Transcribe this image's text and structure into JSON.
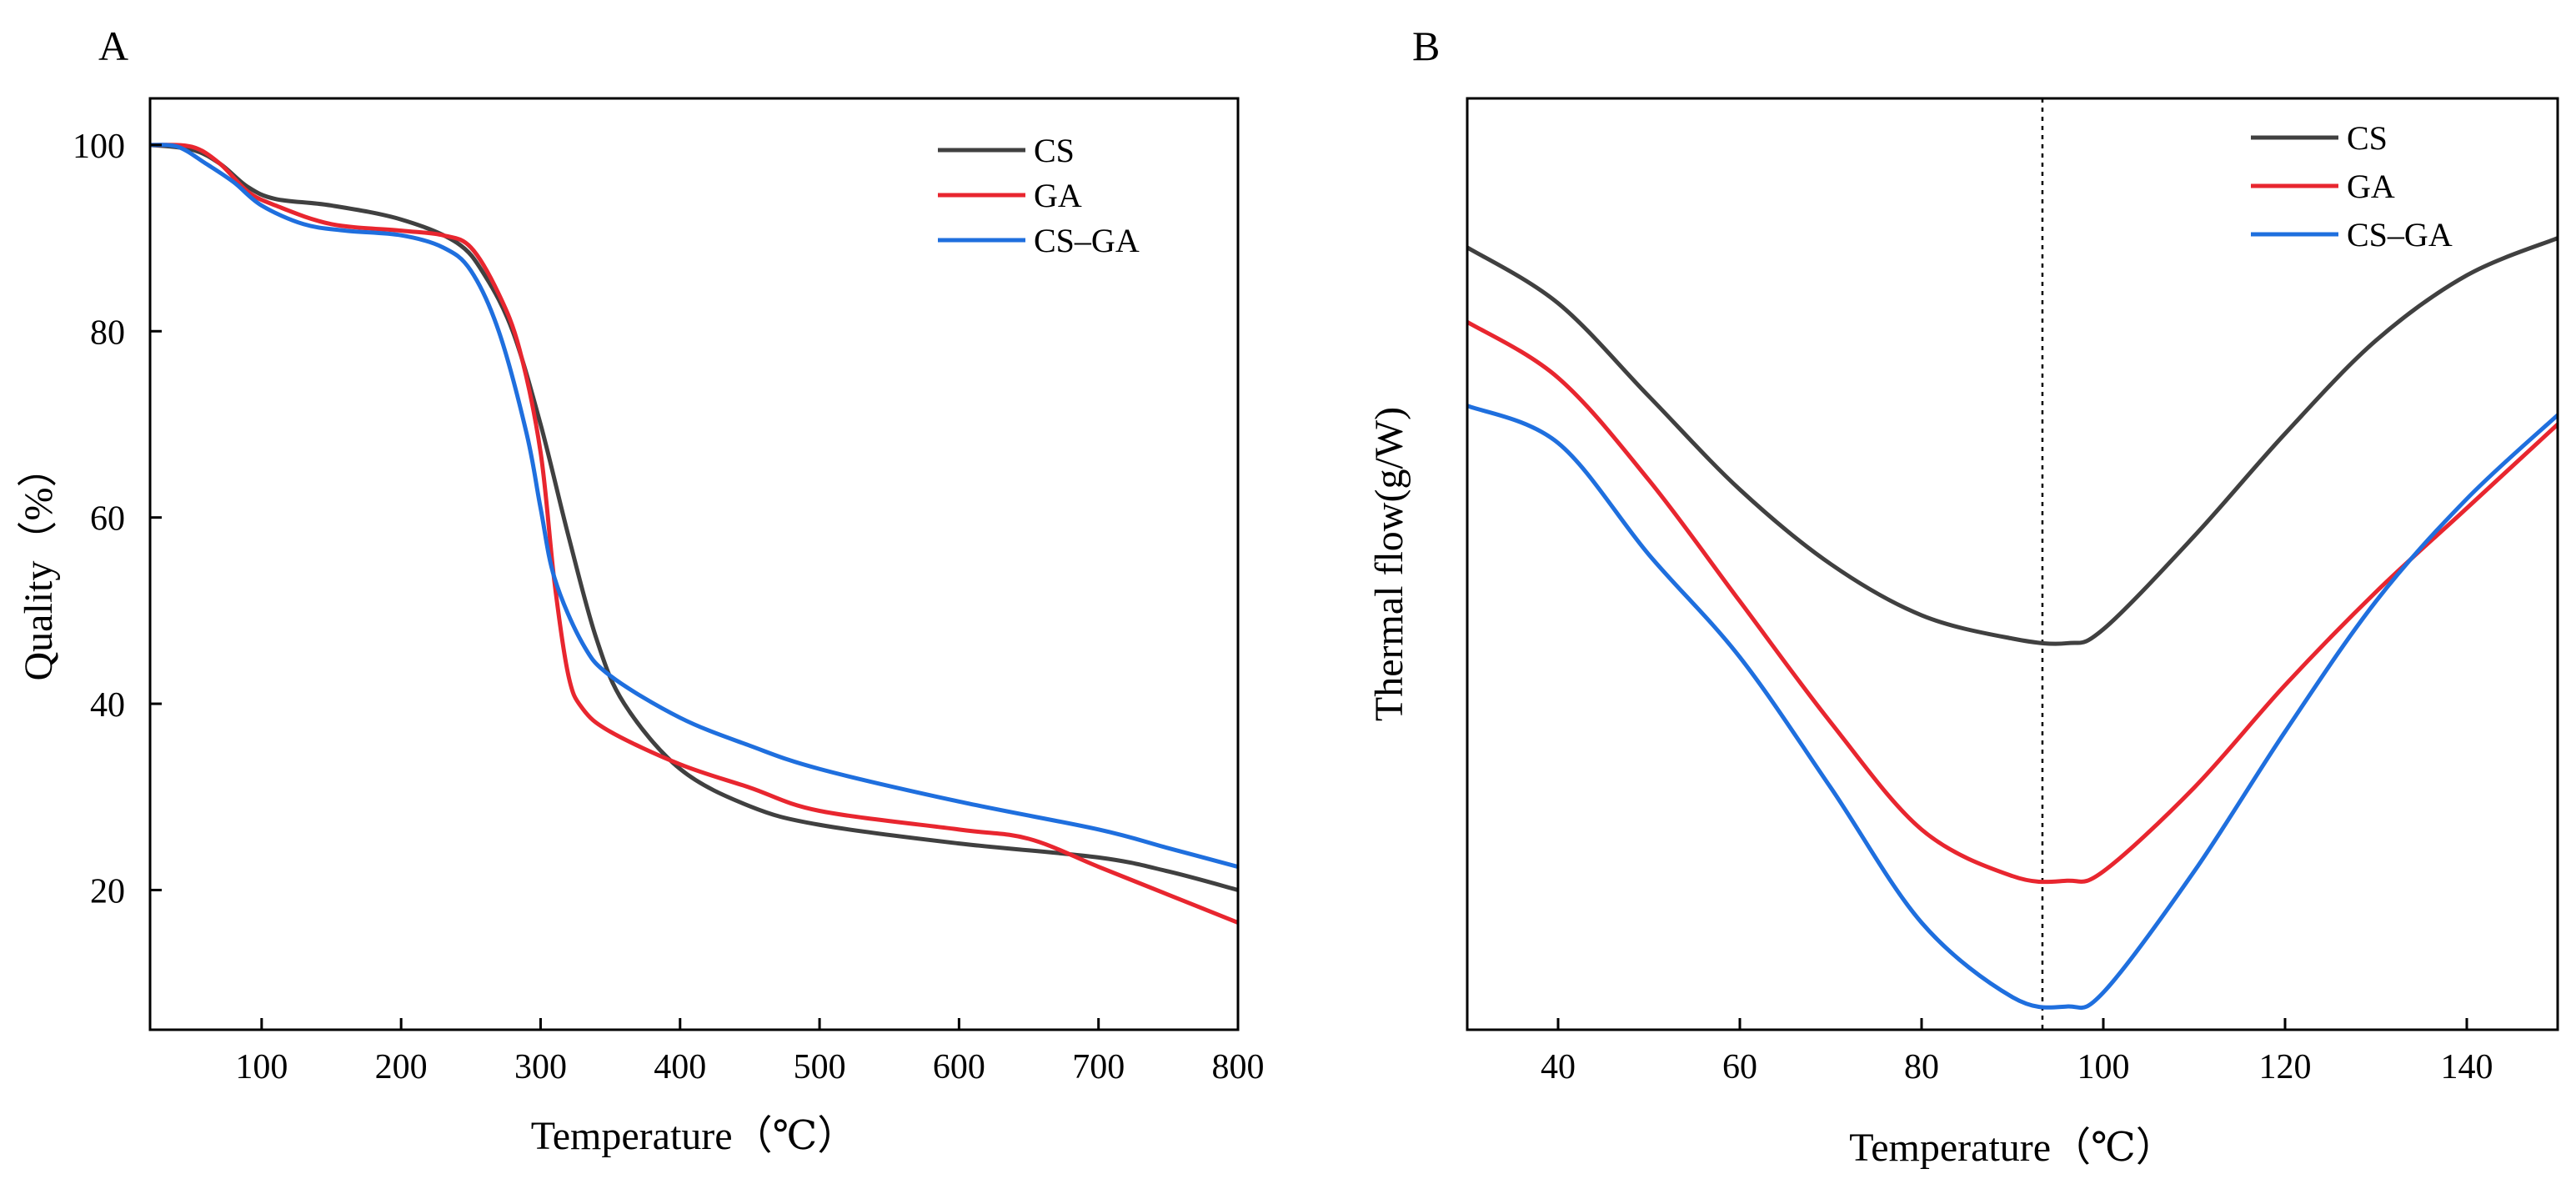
{
  "chart_data": [
    {
      "panel_label": "A",
      "type": "line",
      "xlabel": "Temperature（℃）",
      "ylabel": "Quality（%）",
      "xlim": [
        20,
        800
      ],
      "ylim": [
        5,
        105
      ],
      "xticks": [
        100,
        200,
        300,
        400,
        500,
        600,
        700,
        800
      ],
      "yticks": [
        20,
        40,
        60,
        80,
        100
      ],
      "legend_position": "top-right",
      "grid": false,
      "series": [
        {
          "name": "CS",
          "color": "#404040",
          "x": [
            20,
            50,
            70,
            90,
            110,
            150,
            200,
            240,
            260,
            280,
            300,
            320,
            340,
            360,
            400,
            450,
            500,
            600,
            700,
            750,
            800
          ],
          "y": [
            100,
            99.5,
            98,
            95.5,
            94.2,
            93.5,
            92,
            89.5,
            86,
            80,
            70,
            58,
            47,
            40,
            33,
            29,
            27,
            25,
            23.5,
            22,
            20
          ]
        },
        {
          "name": "GA",
          "color": "#e8262f",
          "x": [
            20,
            50,
            70,
            90,
            110,
            150,
            200,
            230,
            250,
            270,
            285,
            300,
            310,
            320,
            330,
            350,
            400,
            450,
            500,
            600,
            650,
            700,
            750,
            800
          ],
          "y": [
            100,
            99.8,
            98,
            95,
            93.5,
            91.5,
            90.8,
            90.3,
            89,
            84,
            78,
            67,
            53,
            43,
            39.5,
            37,
            33.5,
            31,
            28.5,
            26.5,
            25.5,
            22.5,
            19.5,
            16.5
          ]
        },
        {
          "name": "CS–GA",
          "color": "#1f6fde",
          "x": [
            20,
            40,
            60,
            80,
            100,
            130,
            160,
            200,
            230,
            250,
            270,
            290,
            300,
            310,
            330,
            350,
            400,
            450,
            500,
            600,
            700,
            750,
            800
          ],
          "y": [
            100,
            99.8,
            98,
            96,
            93.5,
            91.5,
            90.8,
            90.3,
            89,
            86.5,
            80,
            69,
            61,
            53.5,
            46.5,
            43,
            38.5,
            35.5,
            33,
            29.5,
            26.5,
            24.5,
            22.5
          ]
        }
      ]
    },
    {
      "panel_label": "B",
      "type": "line",
      "xlabel": "Temperature（℃）",
      "ylabel": "Thermal flow(g/W)",
      "xlim": [
        30,
        150
      ],
      "ylim": [
        0,
        100
      ],
      "xticks": [
        40,
        60,
        80,
        100,
        120,
        140
      ],
      "yticks": [],
      "reference_line_x": 93.3,
      "legend_position": "top-right",
      "grid": false,
      "series": [
        {
          "name": "CS",
          "color": "#404040",
          "x": [
            30,
            40,
            50,
            60,
            70,
            80,
            90,
            96,
            100,
            110,
            120,
            130,
            140,
            150
          ],
          "y": [
            84,
            78,
            68,
            58,
            50,
            44.5,
            42,
            41.5,
            43,
            53,
            64,
            74,
            81,
            85
          ]
        },
        {
          "name": "GA",
          "color": "#e8262f",
          "x": [
            30,
            40,
            50,
            60,
            70,
            80,
            90,
            96,
            100,
            110,
            120,
            130,
            140,
            150
          ],
          "y": [
            76,
            70,
            59,
            46,
            33,
            21.5,
            16.5,
            16,
            17,
            26,
            37,
            47,
            56,
            65
          ]
        },
        {
          "name": "CS–GA",
          "color": "#1f6fde",
          "x": [
            30,
            40,
            50,
            60,
            70,
            80,
            90,
            96,
            100,
            110,
            120,
            130,
            140,
            150
          ],
          "y": [
            67,
            63,
            51,
            40,
            26,
            11.5,
            3.5,
            2.5,
            4,
            17,
            32,
            46,
            57,
            66
          ]
        }
      ]
    }
  ]
}
